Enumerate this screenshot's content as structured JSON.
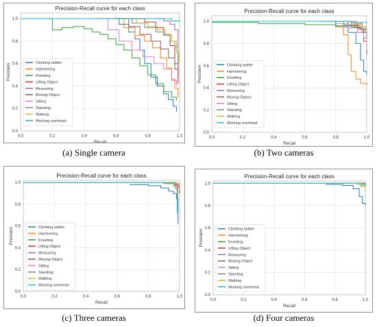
{
  "colors": {
    "Climbing ladder": "#1f77b4",
    "Hammering": "#ff7f0e",
    "Kneeling": "#2ca02c",
    "Lifting Object": "#d62728",
    "Measuring": "#9467bd",
    "Moving Object": "#8c564b",
    "Sitting": "#e377c2",
    "Standing": "#7f7f7f",
    "Walking": "#bcbd22",
    "Working overhead": "#17becf"
  },
  "chart_data": [
    {
      "type": "line",
      "title": "Precision-Recall curve for each class",
      "xlabel": "Recall",
      "ylabel": "Precision",
      "caption": "(a) Single camera",
      "xlim": [
        0,
        1
      ],
      "ylim": [
        0,
        1.05
      ],
      "xticks": [
        "0.0",
        "0.2",
        "0.4",
        "0.6",
        "0.8",
        "1.0"
      ],
      "yticks": [
        "0.0",
        "0.2",
        "0.4",
        "0.6",
        "0.8",
        "1.0"
      ],
      "grid": true,
      "legend": "left-middle",
      "series": [
        {
          "name": "Climbing ladder",
          "x": [
            0.55,
            0.62,
            0.68,
            0.72,
            0.75,
            0.78,
            0.82,
            0.86,
            0.9,
            0.93,
            0.96,
            0.98
          ],
          "y": [
            1.0,
            0.95,
            0.88,
            0.82,
            0.72,
            0.6,
            0.48,
            0.4,
            0.33,
            0.28,
            0.22,
            0.17
          ]
        },
        {
          "name": "Hammering",
          "x": [
            0.58,
            0.65,
            0.72,
            0.78,
            0.83,
            0.88,
            0.92,
            0.95,
            0.97,
            0.99
          ],
          "y": [
            1.0,
            0.92,
            0.85,
            0.8,
            0.74,
            0.65,
            0.56,
            0.46,
            0.38,
            0.3
          ]
        },
        {
          "name": "Kneeling",
          "x": [
            0.17,
            0.2,
            0.26,
            0.33,
            0.4,
            0.45,
            0.5,
            0.55,
            0.6,
            0.65,
            0.7,
            0.75,
            0.8,
            0.85,
            0.9,
            0.95,
            0.98
          ],
          "y": [
            1.0,
            0.9,
            0.92,
            0.93,
            0.91,
            0.88,
            0.86,
            0.82,
            0.77,
            0.72,
            0.65,
            0.58,
            0.5,
            0.42,
            0.35,
            0.3,
            0.27
          ]
        },
        {
          "name": "Lifting Object",
          "x": [
            0.7,
            0.78,
            0.85,
            0.9,
            0.94,
            0.97,
            0.99
          ],
          "y": [
            1.0,
            0.97,
            0.92,
            0.86,
            0.76,
            0.6,
            0.42
          ]
        },
        {
          "name": "Measuring",
          "x": [
            0.85,
            0.9,
            0.94,
            0.97,
            0.99
          ],
          "y": [
            1.0,
            0.98,
            0.95,
            0.9,
            0.75
          ]
        },
        {
          "name": "Moving Object",
          "x": [
            0.6,
            0.68,
            0.75,
            0.82,
            0.88,
            0.93,
            0.97,
            0.99
          ],
          "y": [
            1.0,
            0.93,
            0.86,
            0.8,
            0.73,
            0.65,
            0.55,
            0.48
          ]
        },
        {
          "name": "Sitting",
          "x": [
            0.48,
            0.55,
            0.62,
            0.7,
            0.77,
            0.84,
            0.9,
            0.95,
            0.98
          ],
          "y": [
            1.0,
            0.9,
            0.8,
            0.72,
            0.66,
            0.6,
            0.55,
            0.45,
            0.4
          ]
        },
        {
          "name": "Standing",
          "x": [
            0.62,
            0.7,
            0.78,
            0.85,
            0.9,
            0.94,
            0.97,
            0.99
          ],
          "y": [
            1.0,
            0.96,
            0.92,
            0.88,
            0.85,
            0.8,
            0.75,
            0.55
          ]
        },
        {
          "name": "Walking",
          "x": [
            0.65,
            0.73,
            0.8,
            0.86,
            0.91,
            0.95,
            0.98,
            0.995
          ],
          "y": [
            1.0,
            0.96,
            0.93,
            0.9,
            0.86,
            0.8,
            0.7,
            0.6
          ]
        },
        {
          "name": "Working overhead",
          "x": [
            0.0,
            0.5,
            0.85,
            0.95,
            1.0
          ],
          "y": [
            1.0,
            1.0,
            1.0,
            0.98,
            0.97
          ]
        }
      ]
    },
    {
      "type": "line",
      "title": "Precision-Recall curve for each class",
      "xlabel": "Recall",
      "ylabel": "Precision",
      "caption": "(b) Two cameras",
      "xlim": [
        0,
        1
      ],
      "ylim": [
        0,
        1.05
      ],
      "xticks": [
        "0.0",
        "0.2",
        "0.4",
        "0.6",
        "0.8",
        "1.0"
      ],
      "yticks": [
        "0.0",
        "0.2",
        "0.4",
        "0.6",
        "0.8",
        "1.0"
      ],
      "grid": true,
      "legend": "left-middle",
      "series": [
        {
          "name": "Climbing ladder",
          "x": [
            0.7,
            0.8,
            0.88,
            0.93,
            0.96,
            0.98,
            1.0
          ],
          "y": [
            1.0,
            0.95,
            0.9,
            0.8,
            0.65,
            0.55,
            0.52
          ]
        },
        {
          "name": "Hammering",
          "x": [
            0.8,
            0.85,
            0.88,
            0.9,
            0.93,
            0.96,
            1.0
          ],
          "y": [
            0.95,
            0.88,
            0.7,
            0.55,
            0.48,
            0.44,
            0.42
          ]
        },
        {
          "name": "Kneeling",
          "x": [
            0.0,
            0.3,
            0.6,
            0.8,
            0.9,
            0.96,
            1.0
          ],
          "y": [
            0.99,
            0.98,
            0.97,
            0.96,
            0.95,
            0.93,
            0.9
          ]
        },
        {
          "name": "Lifting Object",
          "x": [
            0.8,
            0.9,
            0.95,
            0.98,
            1.0
          ],
          "y": [
            1.0,
            0.97,
            0.93,
            0.85,
            0.7
          ]
        },
        {
          "name": "Measuring",
          "x": [
            0.85,
            0.93,
            0.97,
            0.99,
            1.0
          ],
          "y": [
            1.0,
            0.98,
            0.95,
            0.9,
            0.8
          ]
        },
        {
          "name": "Moving Object",
          "x": [
            0.8,
            0.88,
            0.94,
            0.98,
            1.0
          ],
          "y": [
            1.0,
            0.96,
            0.9,
            0.82,
            0.72
          ]
        },
        {
          "name": "Sitting",
          "x": [
            0.8,
            0.88,
            0.94,
            0.98,
            1.0
          ],
          "y": [
            0.98,
            0.94,
            0.9,
            0.85,
            0.75
          ]
        },
        {
          "name": "Standing",
          "x": [
            0.75,
            0.85,
            0.92,
            0.97,
            1.0
          ],
          "y": [
            1.0,
            0.97,
            0.94,
            0.9,
            0.85
          ]
        },
        {
          "name": "Walking",
          "x": [
            0.8,
            0.9,
            0.96,
            1.0
          ],
          "y": [
            1.0,
            0.98,
            0.95,
            0.9
          ]
        },
        {
          "name": "Working overhead",
          "x": [
            0.0,
            0.5,
            0.9,
            1.0
          ],
          "y": [
            1.0,
            1.0,
            0.99,
            0.98
          ]
        }
      ]
    },
    {
      "type": "line",
      "title": "Precision-Recall curve for each class",
      "xlabel": "Recall",
      "ylabel": "Precision",
      "caption": "(c) Three cameras",
      "xlim": [
        0,
        1
      ],
      "ylim": [
        0,
        1.02
      ],
      "xticks": [
        "0.0",
        "0.2",
        "0.4",
        "0.6",
        "0.8",
        "1.0"
      ],
      "yticks": [
        "0.0",
        "0.2",
        "0.4",
        "0.6",
        "0.8",
        "1.0"
      ],
      "grid": true,
      "legend": "left-middle",
      "series": [
        {
          "name": "Climbing ladder",
          "x": [
            0.68,
            0.8,
            0.88,
            0.93,
            0.96,
            0.98,
            0.99
          ],
          "y": [
            0.98,
            0.97,
            0.95,
            0.92,
            0.9,
            0.85,
            0.62
          ]
        },
        {
          "name": "Hammering",
          "x": [
            0.9,
            0.96,
            0.98,
            0.99
          ],
          "y": [
            1.0,
            0.97,
            0.93,
            0.85
          ]
        },
        {
          "name": "Kneeling",
          "x": [
            0.0,
            0.5,
            0.9,
            0.98,
            1.0
          ],
          "y": [
            1.0,
            1.0,
            0.99,
            0.98,
            0.96
          ]
        },
        {
          "name": "Lifting Object",
          "x": [
            0.9,
            0.97,
            0.99,
            1.0
          ],
          "y": [
            1.0,
            0.98,
            0.95,
            0.9
          ]
        },
        {
          "name": "Measuring",
          "x": [
            0.92,
            0.98,
            1.0
          ],
          "y": [
            1.0,
            0.98,
            0.94
          ]
        },
        {
          "name": "Moving Object",
          "x": [
            0.9,
            0.97,
            1.0
          ],
          "y": [
            1.0,
            0.97,
            0.92
          ]
        },
        {
          "name": "Sitting",
          "x": [
            0.92,
            0.98,
            1.0
          ],
          "y": [
            1.0,
            0.98,
            0.95
          ]
        },
        {
          "name": "Standing",
          "x": [
            0.9,
            0.97,
            1.0
          ],
          "y": [
            1.0,
            0.99,
            0.96
          ]
        },
        {
          "name": "Walking",
          "x": [
            0.9,
            0.97,
            1.0
          ],
          "y": [
            1.0,
            0.99,
            0.97
          ]
        },
        {
          "name": "Working overhead",
          "x": [
            0.0,
            0.5,
            0.9,
            0.97,
            0.985
          ],
          "y": [
            1.0,
            1.0,
            0.99,
            0.95,
            0.72
          ]
        }
      ]
    },
    {
      "type": "line",
      "title": "Precision-Recall curve for each class",
      "xlabel": "Recall",
      "ylabel": "Precision",
      "caption": "(d) Four cameras",
      "xlim": [
        0,
        1
      ],
      "ylim": [
        0,
        1.02
      ],
      "xticks": [
        "0.0",
        "0.2",
        "0.4",
        "0.6",
        "0.8",
        "1.0"
      ],
      "yticks": [
        "0.0",
        "0.2",
        "0.4",
        "0.6",
        "0.8",
        "1.0"
      ],
      "grid": true,
      "legend": "left-middle",
      "series": [
        {
          "name": "Climbing ladder",
          "x": [
            0.74,
            0.85,
            0.92,
            0.96,
            0.98,
            1.0
          ],
          "y": [
            0.99,
            0.98,
            0.95,
            0.88,
            0.82,
            0.8
          ]
        },
        {
          "name": "Hammering",
          "x": [
            0.92,
            0.97,
            1.0
          ],
          "y": [
            1.0,
            0.98,
            0.96
          ]
        },
        {
          "name": "Kneeling",
          "x": [
            0.0,
            0.5,
            1.0
          ],
          "y": [
            1.0,
            1.0,
            0.99
          ]
        },
        {
          "name": "Lifting Object",
          "x": [
            0.95,
            0.99,
            1.0
          ],
          "y": [
            1.0,
            0.99,
            0.97
          ]
        },
        {
          "name": "Measuring",
          "x": [
            0.95,
            1.0
          ],
          "y": [
            1.0,
            0.98
          ]
        },
        {
          "name": "Moving Object",
          "x": [
            0.95,
            1.0
          ],
          "y": [
            1.0,
            0.98
          ]
        },
        {
          "name": "Sitting",
          "x": [
            0.95,
            1.0
          ],
          "y": [
            1.0,
            0.97
          ]
        },
        {
          "name": "Standing",
          "x": [
            0.95,
            1.0
          ],
          "y": [
            1.0,
            0.98
          ]
        },
        {
          "name": "Walking",
          "x": [
            0.9,
            0.97,
            1.0
          ],
          "y": [
            1.0,
            0.97,
            0.92
          ]
        },
        {
          "name": "Working overhead",
          "x": [
            0.0,
            0.5,
            0.95,
            1.0
          ],
          "y": [
            1.0,
            1.0,
            0.99,
            0.96
          ]
        }
      ]
    }
  ]
}
